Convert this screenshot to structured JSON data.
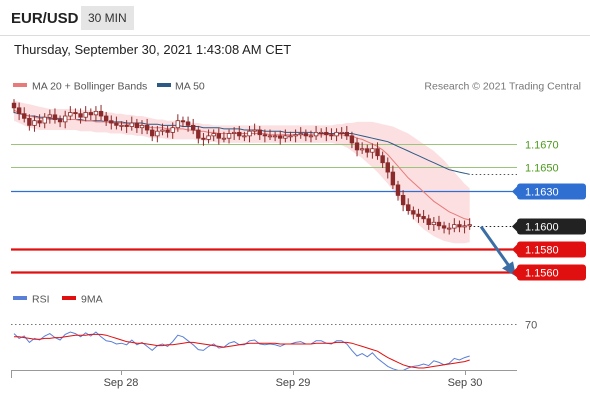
{
  "header": {
    "symbol": "EUR/USD",
    "timeframe": "30 MIN",
    "datetime": "Thursday, September 30, 2021 1:43:08 AM CET"
  },
  "legend": {
    "ma20": "MA 20 + Bollinger Bands",
    "ma50": "MA 50",
    "credit": "Research © 2021 Trading Central",
    "rsi": "RSI",
    "rsi_ma": "9MA"
  },
  "colors": {
    "ma20": "#e87a7a",
    "bollinger_fill": "#fbd9dc",
    "ma50": "#2d5a85",
    "candle": "#8b2a2a",
    "green_level": "#9ac47a",
    "green_text": "#4d9a1e",
    "blue_level": "#2f6fd1",
    "red_level": "#e01010",
    "current": "#222222",
    "arrow": "#3a6ea5",
    "rsi": "#5a7fd8",
    "rsi_ma": "#e01010"
  },
  "chart_data": [
    {
      "type": "candlestick",
      "x_labels": [
        "Sep 28",
        "Sep 29",
        "Sep 30"
      ],
      "ylim": [
        1.1551,
        1.1712
      ],
      "levels": [
        {
          "value": 1.167,
          "label": "1.1670",
          "kind": "green"
        },
        {
          "value": 1.165,
          "label": "1.1650",
          "kind": "green"
        },
        {
          "value": 1.163,
          "label": "1.1630",
          "kind": "blue"
        },
        {
          "value": 1.16,
          "label": "1.1600",
          "kind": "current"
        },
        {
          "value": 1.158,
          "label": "1.1580",
          "kind": "red"
        },
        {
          "value": 1.156,
          "label": "1.1560",
          "kind": "red"
        }
      ],
      "candle_close": [
        1.1701,
        1.1696,
        1.1692,
        1.1686,
        1.169,
        1.1688,
        1.1693,
        1.1695,
        1.1691,
        1.1689,
        1.1694,
        1.1697,
        1.1696,
        1.1693,
        1.1697,
        1.1695,
        1.1698,
        1.1694,
        1.169,
        1.1688,
        1.1686,
        1.1686,
        1.1685,
        1.1688,
        1.1684,
        1.1686,
        1.1682,
        1.1677,
        1.1681,
        1.1682,
        1.168,
        1.1684,
        1.169,
        1.1689,
        1.1686,
        1.1682,
        1.1675,
        1.1674,
        1.1677,
        1.1679,
        1.1675,
        1.1675,
        1.1679,
        1.168,
        1.1677,
        1.1677,
        1.1681,
        1.1682,
        1.1678,
        1.1677,
        1.1677,
        1.1677,
        1.1675,
        1.1677,
        1.1677,
        1.1678,
        1.1679,
        1.1677,
        1.1677,
        1.168,
        1.168,
        1.1678,
        1.1677,
        1.168,
        1.168,
        1.1677,
        1.1671,
        1.1665,
        1.1666,
        1.1663,
        1.1666,
        1.166,
        1.1654,
        1.1646,
        1.1635,
        1.1626,
        1.1618,
        1.1613,
        1.161,
        1.1608,
        1.1606,
        1.1601,
        1.1603,
        1.16,
        1.1598,
        1.1598,
        1.1601,
        1.1599,
        1.16,
        1.1601
      ],
      "ma20": [
        1.1699,
        1.1697,
        1.1695,
        1.1694,
        1.1693,
        1.1692,
        1.1692,
        1.1691,
        1.1691,
        1.1691,
        1.1691,
        1.1691,
        1.1691,
        1.169,
        1.169,
        1.169,
        1.1689,
        1.1689,
        1.1689,
        1.1688,
        1.1688,
        1.1688,
        1.1687,
        1.1687,
        1.1686,
        1.1686,
        1.1685,
        1.1684,
        1.1684,
        1.1684,
        1.1683,
        1.1683,
        1.1683,
        1.1683,
        1.1682,
        1.1682,
        1.1681,
        1.1681,
        1.168,
        1.168,
        1.1679,
        1.1679,
        1.1679,
        1.1679,
        1.1679,
        1.1679,
        1.1679,
        1.1679,
        1.1679,
        1.1679,
        1.1678,
        1.1678,
        1.1678,
        1.1678,
        1.1678,
        1.1678,
        1.1678,
        1.1678,
        1.1678,
        1.1678,
        1.1678,
        1.1678,
        1.1678,
        1.1678,
        1.1678,
        1.1677,
        1.1677,
        1.1675,
        1.1674,
        1.1672,
        1.167,
        1.1668,
        1.1665,
        1.1661,
        1.1656,
        1.1651,
        1.1646,
        1.1641,
        1.1637,
        1.1633,
        1.1629,
        1.1625,
        1.1621,
        1.1618,
        1.1615,
        1.1612,
        1.161,
        1.1608,
        1.1606,
        1.1605
      ],
      "bb_upper": [
        1.1707,
        1.1706,
        1.1705,
        1.1704,
        1.1703,
        1.1702,
        1.1701,
        1.17,
        1.17,
        1.17,
        1.17,
        1.17,
        1.17,
        1.1699,
        1.1699,
        1.1699,
        1.1698,
        1.1698,
        1.1697,
        1.1697,
        1.1696,
        1.1696,
        1.1695,
        1.1695,
        1.1694,
        1.1694,
        1.1693,
        1.1692,
        1.1691,
        1.1691,
        1.169,
        1.169,
        1.169,
        1.1689,
        1.1689,
        1.1688,
        1.1688,
        1.1687,
        1.1687,
        1.1686,
        1.1686,
        1.1686,
        1.1686,
        1.1686,
        1.1686,
        1.1686,
        1.1686,
        1.1686,
        1.1686,
        1.1686,
        1.1686,
        1.1686,
        1.1686,
        1.1686,
        1.1686,
        1.1686,
        1.1686,
        1.1686,
        1.1686,
        1.1686,
        1.1686,
        1.1686,
        1.1686,
        1.1687,
        1.1687,
        1.1688,
        1.1688,
        1.1689,
        1.1689,
        1.1689,
        1.1689,
        1.1688,
        1.1687,
        1.1686,
        1.1685,
        1.1683,
        1.1681,
        1.1679,
        1.1676,
        1.1673,
        1.167,
        1.1667,
        1.1664,
        1.166,
        1.1656,
        1.1651,
        1.1646,
        1.1641,
        1.1636,
        1.1632
      ],
      "bb_lower": [
        1.169,
        1.1688,
        1.1686,
        1.1684,
        1.1683,
        1.1682,
        1.1682,
        1.1682,
        1.1682,
        1.1682,
        1.1682,
        1.1682,
        1.1682,
        1.1681,
        1.1681,
        1.1681,
        1.168,
        1.168,
        1.168,
        1.1679,
        1.1679,
        1.1679,
        1.1678,
        1.1678,
        1.1677,
        1.1677,
        1.1676,
        1.1675,
        1.1675,
        1.1675,
        1.1674,
        1.1674,
        1.1674,
        1.1674,
        1.1674,
        1.1674,
        1.1673,
        1.1673,
        1.1672,
        1.1672,
        1.1671,
        1.1671,
        1.1671,
        1.1671,
        1.1671,
        1.1671,
        1.1671,
        1.1671,
        1.1671,
        1.1671,
        1.1671,
        1.1671,
        1.1671,
        1.1671,
        1.1671,
        1.1671,
        1.1671,
        1.1671,
        1.1671,
        1.1671,
        1.1671,
        1.1671,
        1.1671,
        1.167,
        1.1669,
        1.1667,
        1.1664,
        1.1661,
        1.1658,
        1.1654,
        1.165,
        1.1646,
        1.1641,
        1.1636,
        1.163,
        1.1624,
        1.1618,
        1.1612,
        1.1606,
        1.1601,
        1.1597,
        1.1594,
        1.1591,
        1.1589,
        1.1587,
        1.1586,
        1.1585,
        1.1585,
        1.1585,
        1.1586
      ],
      "ma50": [
        1.1697,
        1.1696,
        1.1695,
        1.1694,
        1.1694,
        1.1693,
        1.1693,
        1.1692,
        1.1692,
        1.1692,
        1.1691,
        1.1691,
        1.1691,
        1.1691,
        1.169,
        1.169,
        1.169,
        1.169,
        1.1689,
        1.1689,
        1.1689,
        1.1689,
        1.1688,
        1.1688,
        1.1688,
        1.1688,
        1.1687,
        1.1687,
        1.1687,
        1.1686,
        1.1686,
        1.1686,
        1.1686,
        1.1685,
        1.1685,
        1.1685,
        1.1685,
        1.1684,
        1.1684,
        1.1684,
        1.1684,
        1.1683,
        1.1683,
        1.1683,
        1.1683,
        1.1682,
        1.1682,
        1.1682,
        1.1682,
        1.1681,
        1.1681,
        1.1681,
        1.1681,
        1.168,
        1.168,
        1.168,
        1.168,
        1.168,
        1.168,
        1.1679,
        1.1679,
        1.1679,
        1.1679,
        1.1679,
        1.1679,
        1.1679,
        1.1679,
        1.1678,
        1.1677,
        1.1676,
        1.1675,
        1.1674,
        1.1673,
        1.1672,
        1.167,
        1.1668,
        1.1666,
        1.1664,
        1.1662,
        1.166,
        1.1658,
        1.1656,
        1.1654,
        1.1652,
        1.165,
        1.1648,
        1.1647,
        1.1646,
        1.1645,
        1.1644
      ],
      "forecast": {
        "from": 1.1601,
        "to": 1.1561
      }
    },
    {
      "type": "line",
      "title": "RSI",
      "ylim": [
        10,
        90
      ],
      "levels": [
        {
          "value": 70,
          "label": "70"
        }
      ],
      "rsi": [
        58,
        52,
        55,
        47,
        52,
        50,
        55,
        58,
        53,
        50,
        57,
        60,
        58,
        54,
        59,
        55,
        60,
        54,
        49,
        48,
        45,
        46,
        44,
        50,
        44,
        47,
        42,
        37,
        43,
        45,
        42,
        48,
        56,
        54,
        49,
        44,
        38,
        37,
        42,
        45,
        40,
        41,
        46,
        48,
        44,
        44,
        49,
        50,
        45,
        44,
        45,
        44,
        42,
        45,
        45,
        47,
        48,
        45,
        45,
        49,
        49,
        46,
        45,
        49,
        49,
        45,
        37,
        30,
        33,
        29,
        34,
        27,
        22,
        17,
        14,
        12,
        12,
        15,
        17,
        18,
        20,
        18,
        24,
        22,
        19,
        21,
        27,
        25,
        28,
        30
      ],
      "rsi_ma": [
        54,
        54,
        53,
        52,
        51,
        51,
        52,
        52,
        53,
        53,
        54,
        55,
        56,
        56,
        56,
        57,
        57,
        57,
        56,
        54,
        52,
        50,
        48,
        47,
        46,
        46,
        45,
        44,
        43,
        43,
        44,
        44,
        45,
        46,
        47,
        47,
        46,
        45,
        44,
        43,
        42,
        41,
        42,
        43,
        44,
        45,
        46,
        46,
        46,
        46,
        46,
        46,
        45,
        45,
        45,
        45,
        45,
        45,
        45,
        46,
        46,
        46,
        46,
        47,
        47,
        47,
        46,
        44,
        42,
        40,
        38,
        36,
        32,
        28,
        25,
        22,
        19,
        17,
        16,
        15,
        15,
        16,
        17,
        18,
        19,
        20,
        21,
        22,
        23,
        25
      ]
    }
  ]
}
